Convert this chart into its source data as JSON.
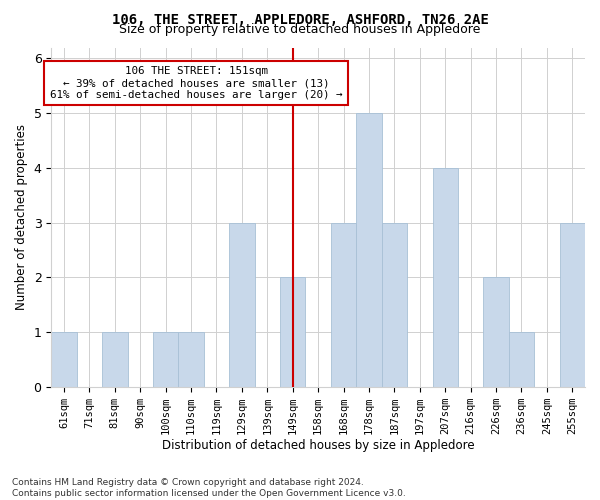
{
  "title": "106, THE STREET, APPLEDORE, ASHFORD, TN26 2AE",
  "subtitle": "Size of property relative to detached houses in Appledore",
  "xlabel": "Distribution of detached houses by size in Appledore",
  "ylabel": "Number of detached properties",
  "categories": [
    "61sqm",
    "71sqm",
    "81sqm",
    "90sqm",
    "100sqm",
    "110sqm",
    "119sqm",
    "129sqm",
    "139sqm",
    "149sqm",
    "158sqm",
    "168sqm",
    "178sqm",
    "187sqm",
    "197sqm",
    "207sqm",
    "216sqm",
    "226sqm",
    "236sqm",
    "245sqm",
    "255sqm"
  ],
  "values": [
    1,
    0,
    1,
    0,
    1,
    1,
    0,
    3,
    0,
    2,
    0,
    3,
    5,
    3,
    0,
    4,
    0,
    2,
    1,
    0,
    3
  ],
  "bar_color": "#c8d8ea",
  "bar_edgecolor": "#a8c0d6",
  "vline_index": 9,
  "property_line_label": "106 THE STREET: 151sqm",
  "annotation_line1": "← 39% of detached houses are smaller (13)",
  "annotation_line2": "61% of semi-detached houses are larger (20) →",
  "vline_color": "#cc0000",
  "box_edgecolor": "#cc0000",
  "ylim": [
    0,
    6.2
  ],
  "yticks": [
    0,
    1,
    2,
    3,
    4,
    5,
    6
  ],
  "footnote1": "Contains HM Land Registry data © Crown copyright and database right 2024.",
  "footnote2": "Contains public sector information licensed under the Open Government Licence v3.0.",
  "bg_color": "#ffffff",
  "grid_color": "#d0d0d0"
}
